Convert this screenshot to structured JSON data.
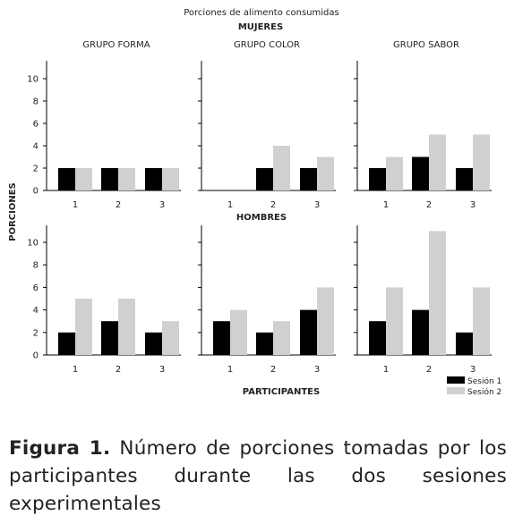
{
  "chart_data": {
    "type": "bar",
    "title": "Porciones de alimento consumidas",
    "ylabel": "PORCIONES",
    "xlabel": "PARTICIPANTES",
    "ylim": [
      0,
      12
    ],
    "yticks": [
      0,
      2,
      4,
      6,
      8,
      10
    ],
    "categories": [
      "1",
      "2",
      "3"
    ],
    "rows": [
      "MUJERES",
      "HOMBRES"
    ],
    "legend": {
      "position": "bottom-right",
      "entries": [
        "Sesión 1",
        "Sesión 2"
      ]
    },
    "colors": {
      "Sesión 1": "#000000",
      "Sesión 2": "#d0d0d0"
    },
    "panels": [
      {
        "row": "MUJERES",
        "group": "GRUPO FORMA",
        "series": [
          {
            "name": "Sesión 1",
            "values": [
              2,
              2,
              2
            ]
          },
          {
            "name": "Sesión 2",
            "values": [
              2,
              2,
              2
            ]
          }
        ]
      },
      {
        "row": "MUJERES",
        "group": "GRUPO COLOR",
        "series": [
          {
            "name": "Sesión 1",
            "values": [
              0,
              2,
              2
            ]
          },
          {
            "name": "Sesión 2",
            "values": [
              0,
              4,
              3
            ]
          }
        ]
      },
      {
        "row": "MUJERES",
        "group": "GRUPO SABOR",
        "series": [
          {
            "name": "Sesión 1",
            "values": [
              2,
              3,
              2
            ]
          },
          {
            "name": "Sesión 2",
            "values": [
              3,
              5,
              5
            ]
          }
        ]
      },
      {
        "row": "HOMBRES",
        "group": "",
        "series": [
          {
            "name": "Sesión 1",
            "values": [
              2,
              3,
              2
            ]
          },
          {
            "name": "Sesión 2",
            "values": [
              5,
              5,
              3
            ]
          }
        ]
      },
      {
        "row": "HOMBRES",
        "group": "",
        "series": [
          {
            "name": "Sesión 1",
            "values": [
              3,
              2,
              4
            ]
          },
          {
            "name": "Sesión 2",
            "values": [
              4,
              3,
              6
            ]
          }
        ]
      },
      {
        "row": "HOMBRES",
        "group": "",
        "series": [
          {
            "name": "Sesión 1",
            "values": [
              3,
              4,
              2
            ]
          },
          {
            "name": "Sesión 2",
            "values": [
              6,
              11,
              6
            ]
          }
        ]
      }
    ]
  },
  "caption": {
    "label": "Figura 1.",
    "text": "Número de porciones tomadas por los participantes durante las dos sesiones experimentales"
  }
}
